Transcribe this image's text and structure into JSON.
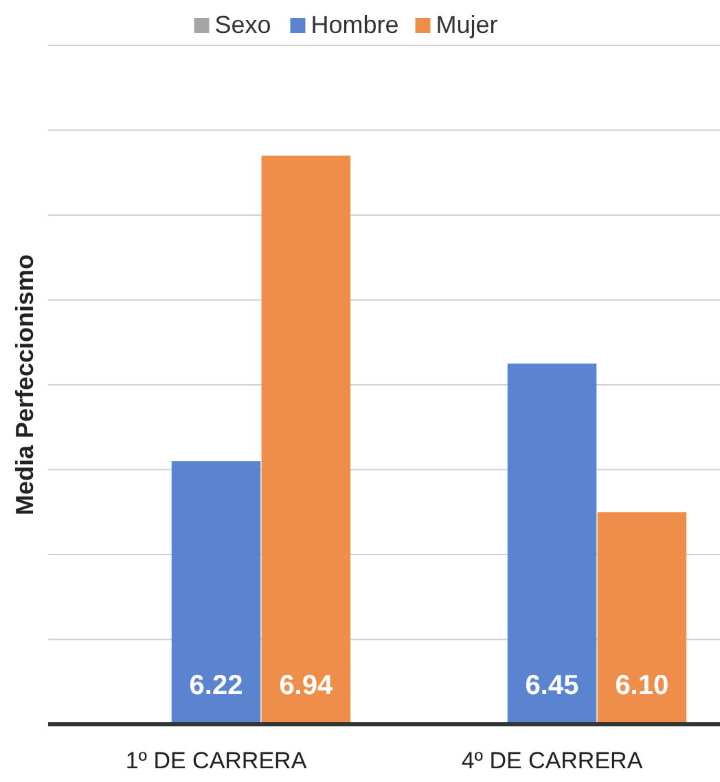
{
  "chart_data": {
    "type": "bar",
    "ylabel": "Media Perfeccionismo",
    "categories": [
      "1º DE CARRERA",
      "4º DE CARRERA"
    ],
    "series": [
      {
        "name": "Sexo",
        "color": "#a5a5a5",
        "values": [
          null,
          null
        ]
      },
      {
        "name": "Hombre",
        "color": "#5b84d0",
        "values": [
          6.22,
          6.45
        ],
        "value_labels": [
          "6.22",
          "6.45"
        ]
      },
      {
        "name": "Mujer",
        "color": "#ef8e4b",
        "values": [
          6.94,
          6.1
        ],
        "value_labels": [
          "6.94",
          "6.10"
        ]
      }
    ],
    "ylim": [
      5.6,
      7.2
    ],
    "yticks": [
      {
        "value": 5.6,
        "label": null
      },
      {
        "value": 5.8,
        "label": null
      },
      {
        "value": 6.0,
        "label": null
      },
      {
        "value": 6.2,
        "label": null
      },
      {
        "value": 6.4,
        "label": null
      },
      {
        "value": 6.6,
        "label": null
      },
      {
        "value": 6.8,
        "label": null
      },
      {
        "value": 7.0,
        "label": null
      },
      {
        "value": 7.2,
        "label": null
      }
    ],
    "tick_labels": "x",
    "grid": "y",
    "legend": "top"
  }
}
